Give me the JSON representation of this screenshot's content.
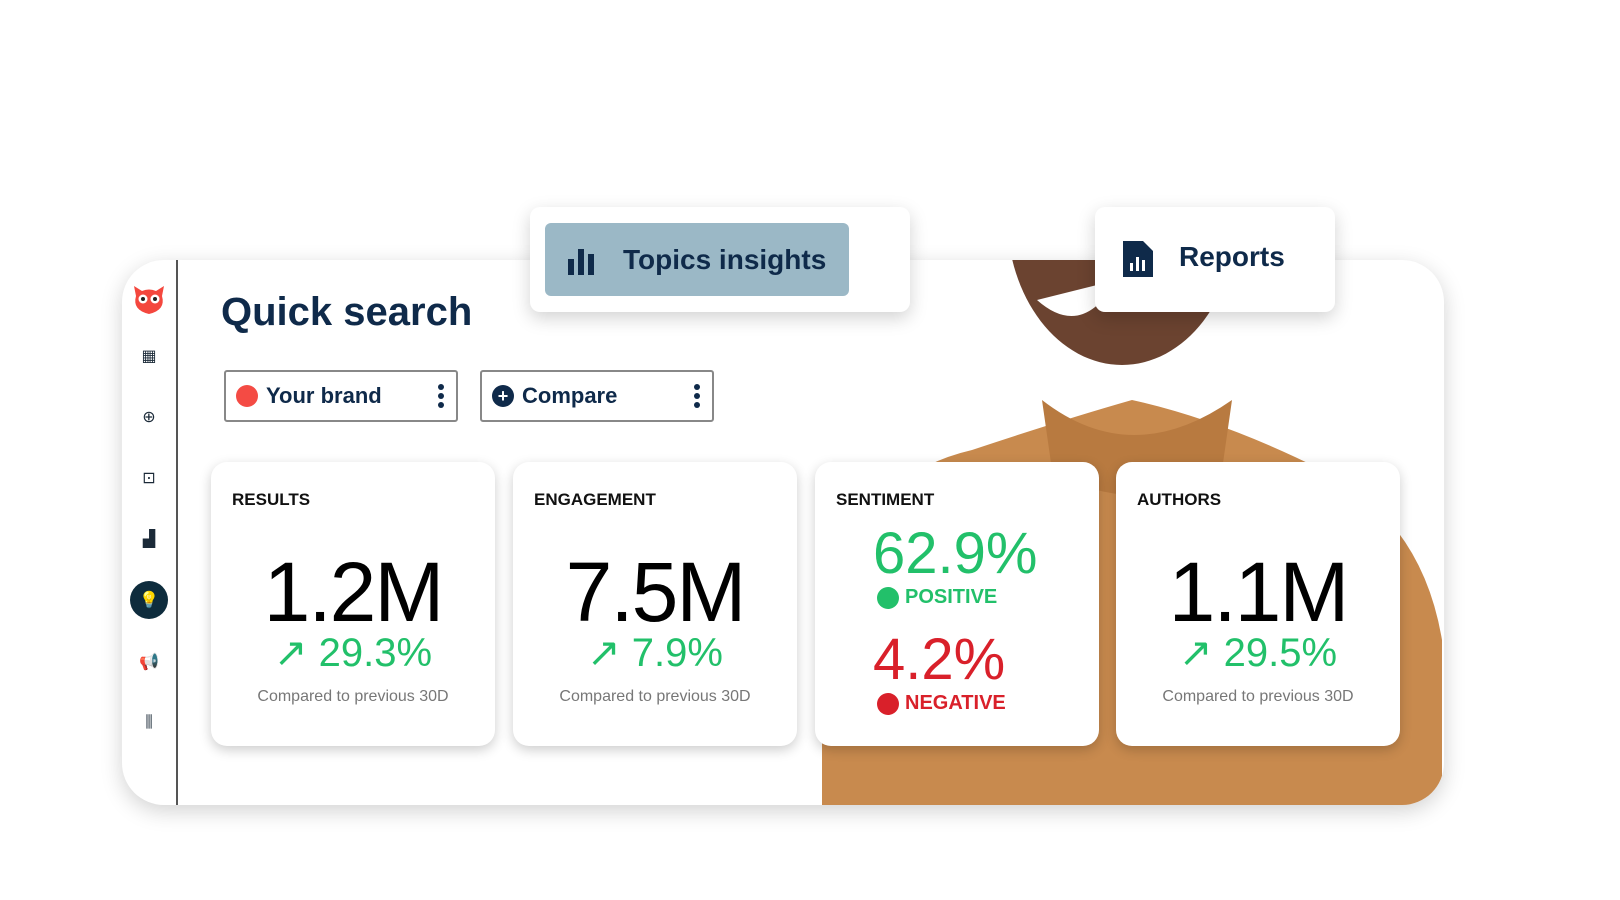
{
  "tabs": {
    "topics_insights": "Topics insights",
    "reports": "Reports"
  },
  "sidebar": {
    "icons": [
      "owl-logo-icon",
      "calendar-icon",
      "plus-circle-icon",
      "inbox-icon",
      "bar-chart-icon",
      "lightbulb-icon",
      "megaphone-icon",
      "audio-bars-icon"
    ],
    "active": "lightbulb-icon"
  },
  "main": {
    "title": "Quick search",
    "brand_pill": {
      "label": "Your brand",
      "dot_color": "#f44b44"
    },
    "compare_pill": {
      "label": "Compare"
    },
    "cards": [
      {
        "label": "RESULTS",
        "value": "1.2M",
        "change": "29.3%",
        "compare": "Compared to previous 30D"
      },
      {
        "label": "ENGAGEMENT",
        "value": "7.5M",
        "change": "7.9%",
        "compare": "Compared to previous 30D"
      },
      {
        "label": "SENTIMENT",
        "positive_value": "62.9%",
        "positive_label": "POSITIVE",
        "negative_value": "4.2%",
        "negative_label": "NEGATIVE"
      },
      {
        "label": "AUTHORS",
        "value": "1.1M",
        "change": "29.5%",
        "compare": "Compared to previous 30D"
      }
    ]
  },
  "colors": {
    "positive": "#22c06a",
    "negative": "#d9202a",
    "brand_navy": "#0f2a4a",
    "active_tab": "#9bb8c6"
  }
}
